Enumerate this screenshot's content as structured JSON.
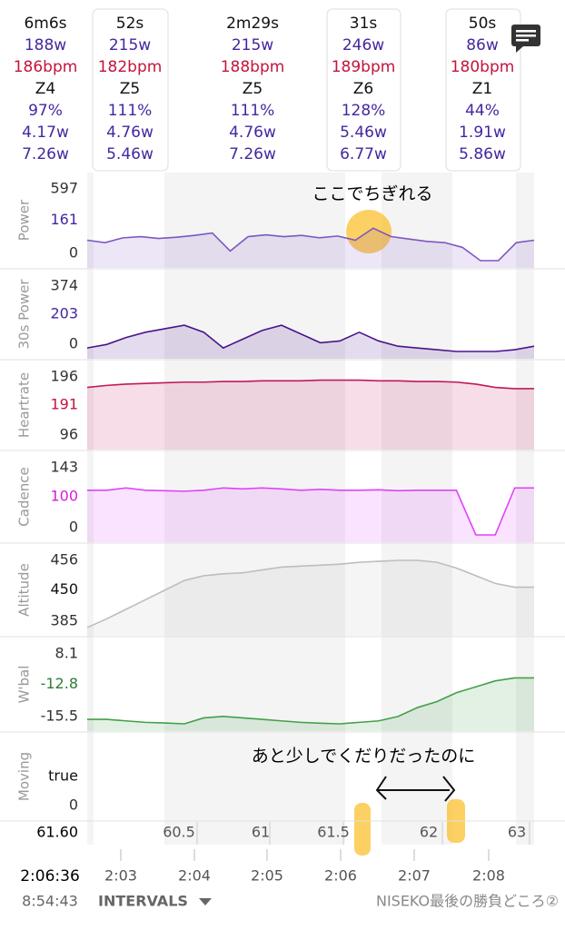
{
  "intervals": [
    {
      "duration": "6m6s",
      "power": "188w",
      "heartrate": "186bpm",
      "zone": "Z4",
      "percent": "97%",
      "wkg": "4.17w",
      "wkg2": "7.26w"
    },
    {
      "duration": "52s",
      "power": "215w",
      "heartrate": "182bpm",
      "zone": "Z5",
      "percent": "111%",
      "wkg": "4.76w",
      "wkg2": "5.46w"
    },
    {
      "duration": "2m29s",
      "power": "215w",
      "heartrate": "188bpm",
      "zone": "Z5",
      "percent": "111%",
      "wkg": "4.76w",
      "wkg2": "7.26w"
    },
    {
      "duration": "31s",
      "power": "246w",
      "heartrate": "189bpm",
      "zone": "Z6",
      "percent": "128%",
      "wkg": "5.46w",
      "wkg2": "6.77w"
    },
    {
      "duration": "50s",
      "power": "86w",
      "heartrate": "180bpm",
      "zone": "Z1",
      "percent": "44%",
      "wkg": "1.91w",
      "wkg2": "5.86w"
    }
  ],
  "panels": [
    {
      "label": "Power",
      "max": 597,
      "current": 161,
      "min": 0,
      "color": "#7e57c2",
      "values": [
        170,
        150,
        190,
        200,
        185,
        195,
        210,
        230,
        80,
        200,
        215,
        200,
        210,
        190,
        205,
        170,
        270,
        200,
        180,
        160,
        150,
        110,
        0,
        0,
        150,
        170
      ]
    },
    {
      "label": "30s Power",
      "max": 374,
      "current": 203,
      "min": 0,
      "color": "#4a148c",
      "values": [
        20,
        40,
        80,
        110,
        130,
        150,
        110,
        20,
        70,
        120,
        150,
        100,
        50,
        60,
        110,
        60,
        30,
        20,
        10,
        0,
        0,
        0,
        10,
        30
      ]
    },
    {
      "label": "Heartrate",
      "max": 196,
      "current": 191,
      "min": 96,
      "color": "#c2185b",
      "values": [
        180,
        183,
        185,
        186,
        187,
        188,
        188,
        189,
        189,
        190,
        190,
        190,
        191,
        191,
        191,
        190,
        190,
        189,
        189,
        188,
        185,
        180,
        178,
        178
      ]
    },
    {
      "label": "Cadence",
      "max": 143,
      "current": 100,
      "min": 0,
      "color": "#e040fb",
      "values": [
        95,
        95,
        100,
        95,
        94,
        93,
        95,
        100,
        98,
        100,
        98,
        95,
        97,
        95,
        95,
        96,
        94,
        95,
        95,
        95,
        0,
        0,
        100,
        100
      ]
    },
    {
      "label": "Altitude",
      "max": 456,
      "current": 450,
      "min": 385,
      "color": "#bdbdbd",
      "values": [
        386,
        395,
        405,
        415,
        425,
        435,
        440,
        442,
        443,
        446,
        449,
        450,
        451,
        452,
        454,
        455,
        456,
        456,
        454,
        448,
        440,
        432,
        428,
        428
      ]
    },
    {
      "label": "W'bal",
      "max": 8.1,
      "current": -12.8,
      "min": -15.5,
      "color": "#43a047",
      "values": [
        -14,
        -14,
        -14.5,
        -15,
        -15.2,
        -15.5,
        -13.5,
        -13,
        -13.5,
        -14,
        -14.5,
        -15,
        -15.3,
        -15.5,
        -15,
        -14.5,
        -13,
        -10,
        -8,
        -5,
        -3,
        -1,
        0,
        0
      ]
    },
    {
      "label": "Moving",
      "current": "true",
      "min": 0
    }
  ],
  "distance": {
    "current": "61.60",
    "ticks": [
      60.5,
      61,
      61.5,
      62,
      63
    ]
  },
  "time": {
    "current": "2:06:36",
    "ticks": [
      "2:03",
      "2:04",
      "2:05",
      "2:06",
      "2:07",
      "2:08"
    ]
  },
  "footer": {
    "clock": "8:54:43",
    "menu": "INTERVALS",
    "activity": "NISEKO最後の勝負どころ②"
  },
  "annotations": [
    "ここでちぎれる",
    "あと少しでくだりだったのに"
  ]
}
